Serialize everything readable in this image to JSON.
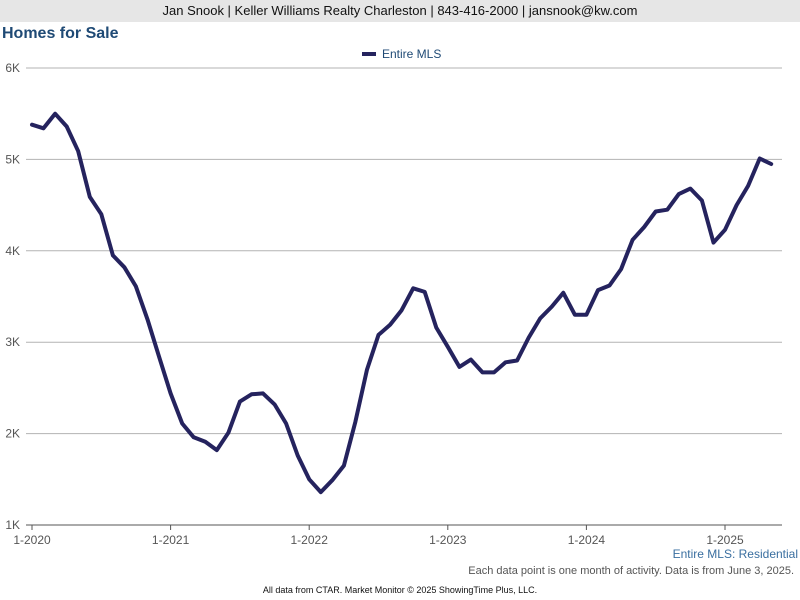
{
  "header": {
    "text": "Jan Snook | Keller Williams Realty Charleston | 843-416-2000 | jansnook@kw.com"
  },
  "caption": "Entire MLS: Residential",
  "note": "Each data point is one month of activity. Data is from June 3, 2025.",
  "footer": "All data from CTAR. Market Monitor © 2025 ShowingTime Plus, LLC.",
  "chart_data": {
    "type": "line",
    "title": "Homes for Sale",
    "xlabel": "",
    "ylabel": "",
    "ylim": [
      1000,
      6000
    ],
    "y_ticks": [
      1000,
      2000,
      3000,
      4000,
      5000,
      6000
    ],
    "y_tick_labels": [
      "1K",
      "2K",
      "3K",
      "4K",
      "5K",
      "6K"
    ],
    "x_tick_labels": [
      "1-2020",
      "1-2021",
      "1-2022",
      "1-2023",
      "1-2024",
      "1-2025"
    ],
    "grid": true,
    "legend_position": "top-center",
    "line_color": "#25235e",
    "x": [
      "1-2020",
      "2-2020",
      "3-2020",
      "4-2020",
      "5-2020",
      "6-2020",
      "7-2020",
      "8-2020",
      "9-2020",
      "10-2020",
      "11-2020",
      "12-2020",
      "1-2021",
      "2-2021",
      "3-2021",
      "4-2021",
      "5-2021",
      "6-2021",
      "7-2021",
      "8-2021",
      "9-2021",
      "10-2021",
      "11-2021",
      "12-2021",
      "1-2022",
      "2-2022",
      "3-2022",
      "4-2022",
      "5-2022",
      "6-2022",
      "7-2022",
      "8-2022",
      "9-2022",
      "10-2022",
      "11-2022",
      "12-2022",
      "1-2023",
      "2-2023",
      "3-2023",
      "4-2023",
      "5-2023",
      "6-2023",
      "7-2023",
      "8-2023",
      "9-2023",
      "10-2023",
      "11-2023",
      "12-2023",
      "1-2024",
      "2-2024",
      "3-2024",
      "4-2024",
      "5-2024",
      "6-2024",
      "7-2024",
      "8-2024",
      "9-2024",
      "10-2024",
      "11-2024",
      "12-2024",
      "1-2025",
      "2-2025",
      "3-2025",
      "4-2025",
      "5-2025"
    ],
    "series": [
      {
        "name": "Entire MLS",
        "values": [
          5380,
          5340,
          5500,
          5360,
          5090,
          4590,
          4400,
          3950,
          3820,
          3610,
          3250,
          2840,
          2440,
          2110,
          1960,
          1910,
          1820,
          2010,
          2350,
          2430,
          2440,
          2320,
          2110,
          1760,
          1500,
          1360,
          1490,
          1650,
          2130,
          2700,
          3080,
          3190,
          3350,
          3590,
          3550,
          3160,
          2950,
          2730,
          2810,
          2670,
          2670,
          2780,
          2800,
          3050,
          3260,
          3390,
          3540,
          3300,
          3300,
          3570,
          3620,
          3800,
          4120,
          4260,
          4430,
          4450,
          4620,
          4680,
          4550,
          4090,
          4230,
          4500,
          4710,
          5010,
          4950
        ]
      }
    ]
  }
}
